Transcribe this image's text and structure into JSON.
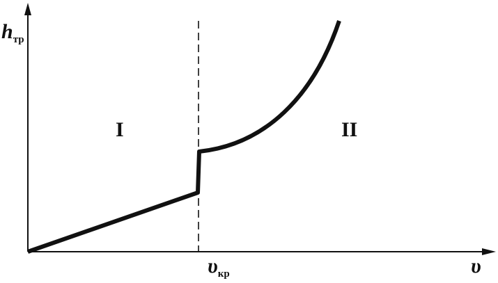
{
  "y_axis": {
    "symbol": "h",
    "subscript": "тр"
  },
  "x_axis": {
    "symbol": "υ"
  },
  "critical": {
    "symbol": "υ",
    "subscript": "кр"
  },
  "regions": [
    "I",
    "II"
  ]
}
